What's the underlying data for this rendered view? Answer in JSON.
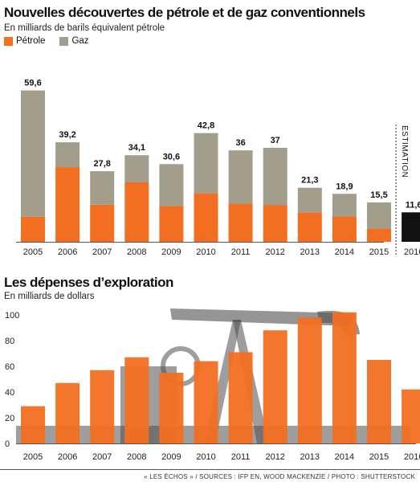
{
  "colors": {
    "petrole": "#F26F21",
    "gaz": "#A39E8B",
    "estimation": "#111111",
    "exploration": "#F26F21",
    "photo_dark": "#3A3A3A"
  },
  "chart_data": [
    {
      "type": "bar",
      "stacked": true,
      "title": "Nouvelles découvertes de pétrole et de gaz conventionnels",
      "subtitle": "En milliards de barils équivalent pétrole",
      "legend": [
        "Pétrole",
        "Gaz"
      ],
      "legend_placement": "top-left",
      "categories": [
        "2005",
        "2006",
        "2007",
        "2008",
        "2009",
        "2010",
        "2011",
        "2012",
        "2013",
        "2014",
        "2015",
        "2016"
      ],
      "series": [
        {
          "name": "Pétrole",
          "values": [
            9.9,
            29.4,
            14.6,
            23.4,
            14.1,
            19.1,
            15.0,
            14.4,
            11.6,
            10.0,
            5.2,
            11.6
          ]
        },
        {
          "name": "Gaz",
          "values": [
            49.7,
            9.8,
            13.2,
            10.7,
            16.5,
            23.7,
            21.0,
            22.6,
            9.7,
            8.9,
            10.3,
            0
          ]
        }
      ],
      "totals": [
        59.6,
        39.2,
        27.8,
        34.1,
        30.6,
        42.8,
        36,
        37,
        21.3,
        18.9,
        15.5,
        11.6
      ],
      "total_labels": [
        "59,6",
        "39,2",
        "27,8",
        "34,1",
        "30,6",
        "42,8",
        "36",
        "37",
        "21,3",
        "18,9",
        "15,5",
        "11,6"
      ],
      "estimation_label": "ESTIMATION",
      "estimation_index": 11,
      "ylim": [
        0,
        62
      ],
      "grid": false
    },
    {
      "type": "bar",
      "title": "Les dépenses d’exploration",
      "subtitle": "En milliards de dollars",
      "categories": [
        "2005",
        "2006",
        "2007",
        "2008",
        "2009",
        "2010",
        "2011",
        "2012",
        "2013",
        "2014",
        "2015",
        "2016"
      ],
      "values": [
        29,
        47,
        57,
        67,
        55,
        64,
        71,
        88,
        98,
        102,
        65,
        42
      ],
      "ylim": [
        0,
        105
      ],
      "yticks": [
        0,
        20,
        40,
        60,
        80,
        100
      ],
      "grid": false
    }
  ],
  "footer": "« LES ÉCHOS » / SOURCES : IFP EN, WOOD MACKENZIE / PHOTO : SHUTTERSTOCK"
}
